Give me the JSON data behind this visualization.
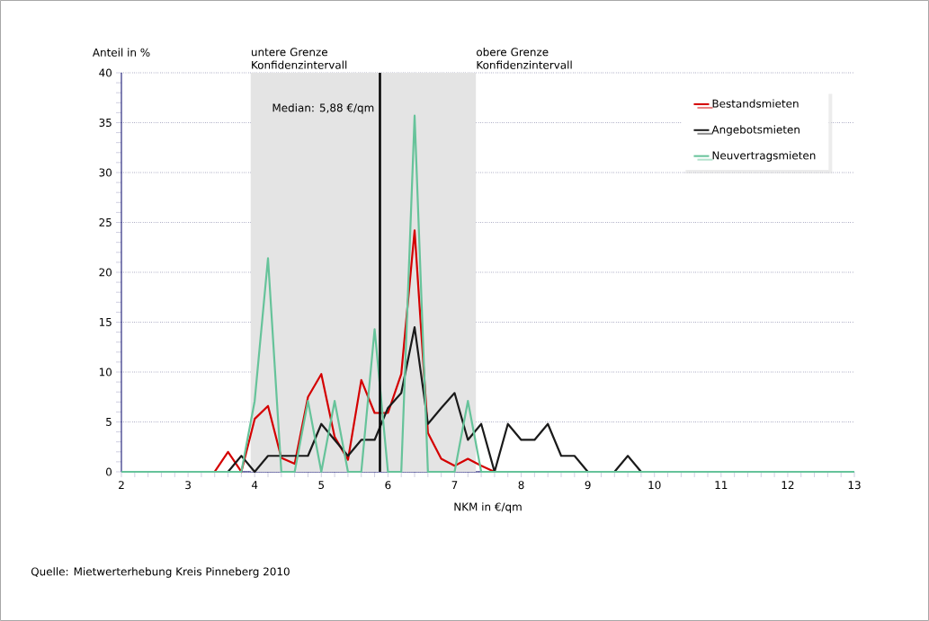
{
  "chart_data": {
    "type": "line",
    "xlabel": "NKM in €/qm",
    "ylabel": "Anteil in %",
    "x": [
      2.0,
      2.2,
      2.4,
      2.6,
      2.8,
      3.0,
      3.2,
      3.4,
      3.6,
      3.8,
      4.0,
      4.2,
      4.4,
      4.6,
      4.8,
      5.0,
      5.2,
      5.4,
      5.6,
      5.8,
      6.0,
      6.2,
      6.4,
      6.6,
      6.8,
      7.0,
      7.2,
      7.4,
      7.6,
      7.8,
      8.0,
      8.2,
      8.4,
      8.6,
      8.8,
      9.0,
      9.2,
      9.4,
      9.6,
      9.8,
      10.0,
      10.2,
      10.4,
      10.6,
      10.8,
      11.0,
      11.2,
      11.4,
      11.6,
      11.8,
      12.0,
      12.2,
      12.4,
      12.6,
      12.8,
      13.0
    ],
    "series": [
      {
        "name": "Bestandsmieten",
        "color": "#d40000",
        "values": [
          null,
          null,
          null,
          null,
          null,
          null,
          null,
          0,
          2.0,
          0,
          5.3,
          6.6,
          1.4,
          0.8,
          7.5,
          9.8,
          3.5,
          1.2,
          9.2,
          5.9,
          5.9,
          9.8,
          24.2,
          3.9,
          1.3,
          0.6,
          1.3,
          0.6,
          0,
          null,
          null,
          null,
          null,
          null,
          null,
          null,
          null,
          null,
          null,
          null,
          null,
          null,
          null,
          null,
          null,
          null,
          null,
          null,
          null,
          null,
          null,
          null,
          null,
          null,
          null,
          null
        ]
      },
      {
        "name": "Angebotsmieten",
        "color": "#1a1a1a",
        "values": [
          null,
          null,
          null,
          null,
          null,
          null,
          null,
          0,
          0,
          1.6,
          0,
          1.6,
          1.6,
          1.6,
          1.6,
          4.8,
          3.2,
          1.6,
          3.2,
          3.2,
          6.4,
          7.9,
          14.5,
          4.8,
          6.4,
          7.9,
          3.2,
          4.8,
          0,
          4.8,
          3.2,
          3.2,
          4.8,
          1.6,
          1.6,
          0,
          0,
          0,
          1.6,
          0,
          0,
          null,
          null,
          null,
          null,
          null,
          null,
          null,
          null,
          null,
          null,
          null,
          null,
          null,
          null,
          null
        ]
      },
      {
        "name": "Neuvertragsmieten",
        "color": "#66c39a",
        "values": [
          0,
          0,
          0,
          0,
          0,
          0,
          0,
          0,
          0,
          0,
          7.1,
          21.4,
          0,
          0,
          7.1,
          0,
          7.1,
          0,
          0,
          14.3,
          0,
          0,
          35.7,
          0,
          0,
          0,
          7.1,
          0,
          0,
          0,
          0,
          0,
          0,
          0,
          0,
          0,
          0,
          0,
          0,
          0,
          0,
          0,
          0,
          0,
          0,
          0,
          0,
          0,
          0,
          0,
          0,
          0,
          0,
          0,
          0,
          0
        ]
      }
    ],
    "xlim": [
      2,
      13
    ],
    "xticks": [
      2,
      3,
      4,
      5,
      6,
      7,
      8,
      9,
      10,
      11,
      12,
      13
    ],
    "ylim": [
      0,
      40
    ],
    "yticks": [
      0,
      5,
      10,
      15,
      20,
      25,
      30,
      35,
      40
    ],
    "grid": "y",
    "legend": "top right",
    "marker": "none",
    "line_style": "solid",
    "bands": [
      {
        "axis": "x",
        "from": 3.94,
        "to": 7.32,
        "color": "#e4e4e4"
      }
    ],
    "ref_lines": [
      {
        "axis": "x",
        "value": 5.88,
        "label": "Median: 5,88 €/qm",
        "color": "#000000"
      }
    ],
    "annotations": [
      {
        "text": "untere Grenze Konfidenzintervall",
        "x": 3.94,
        "y": 40
      },
      {
        "text": "obere Grenze Konfidenzintervall",
        "x": 7.32,
        "y": 40
      },
      "Quelle: Mietwerterhebung Kreis Pinneberg 2010"
    ]
  }
}
